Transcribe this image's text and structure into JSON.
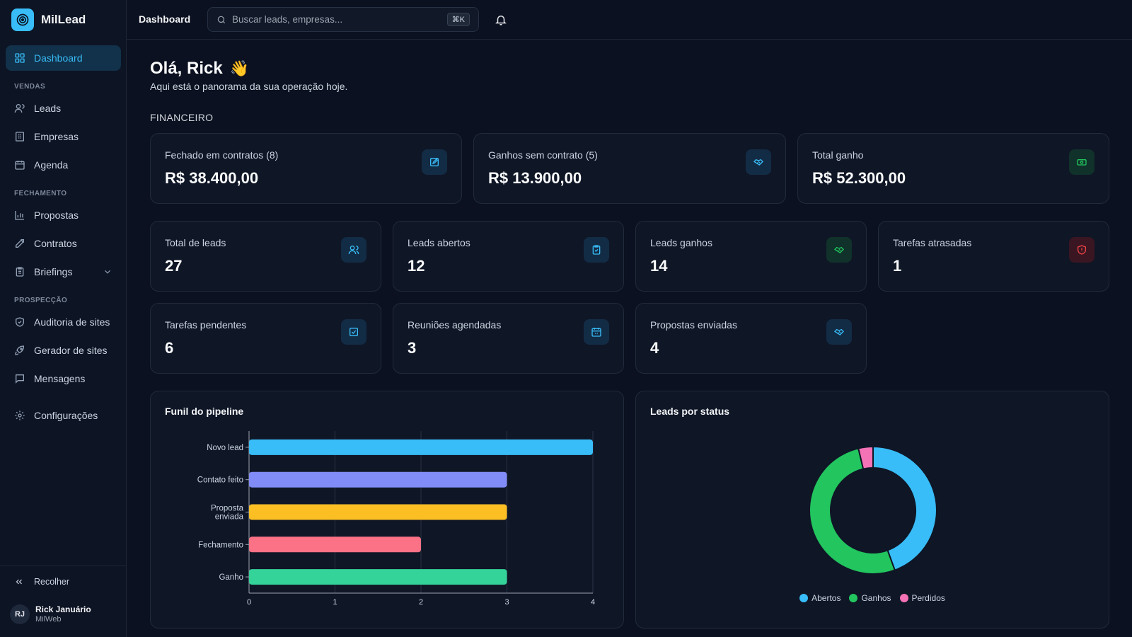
{
  "app": {
    "name": "MilLead"
  },
  "sidebar": {
    "dashboard": "Dashboard",
    "sections": {
      "vendas": "VENDAS",
      "fechamento": "FECHAMENTO",
      "prospeccao": "PROSPECÇÃO"
    },
    "items": {
      "leads": "Leads",
      "empresas": "Empresas",
      "agenda": "Agenda",
      "propostas": "Propostas",
      "contratos": "Contratos",
      "briefings": "Briefings",
      "auditoria": "Auditoria de sites",
      "gerador": "Gerador de sites",
      "mensagens": "Mensagens",
      "configuracoes": "Configurações"
    },
    "collapse": "Recolher",
    "user": {
      "initials": "RJ",
      "name": "Rick Januário",
      "org": "MilWeb"
    }
  },
  "topbar": {
    "title": "Dashboard",
    "search_placeholder": "Buscar leads, empresas...",
    "shortcut": "⌘K"
  },
  "greeting": {
    "title": "Olá, Rick",
    "emoji": "👋",
    "subtitle": "Aqui está o panorama da sua operação hoje."
  },
  "financeiro": {
    "label": "FINANCEIRO",
    "cards": [
      {
        "label": "Fechado em contratos (8)",
        "value": "R$ 38.400,00",
        "icon": "edit-icon"
      },
      {
        "label": "Ganhos sem contrato (5)",
        "value": "R$ 13.900,00",
        "icon": "handshake-icon"
      },
      {
        "label": "Total ganho",
        "value": "R$ 52.300,00",
        "icon": "banknote-icon"
      }
    ]
  },
  "stats": [
    {
      "label": "Total de leads",
      "value": "27",
      "icon": "users-icon",
      "color": "#38bdf8"
    },
    {
      "label": "Leads abertos",
      "value": "12",
      "icon": "clipboard-icon",
      "color": "#38bdf8"
    },
    {
      "label": "Leads ganhos",
      "value": "14",
      "icon": "handshake-icon",
      "color": "#22c55e"
    },
    {
      "label": "Tarefas atrasadas",
      "value": "1",
      "icon": "alert-shield-icon",
      "color": "#ef4444"
    },
    {
      "label": "Tarefas pendentes",
      "value": "6",
      "icon": "check-square-icon",
      "color": "#38bdf8"
    },
    {
      "label": "Reuniões agendadas",
      "value": "3",
      "icon": "calendar-icon",
      "color": "#38bdf8"
    },
    {
      "label": "Propostas enviadas",
      "value": "4",
      "icon": "handshake-icon",
      "color": "#38bdf8"
    }
  ],
  "chart_data": [
    {
      "type": "bar",
      "orientation": "horizontal",
      "title": "Funil do pipeline",
      "categories": [
        "Novo lead",
        "Contato feito",
        "Proposta enviada",
        "Fechamento",
        "Ganho"
      ],
      "values": [
        4,
        3,
        3,
        2,
        3
      ],
      "colors": [
        "#38bdf8",
        "#818cf8",
        "#fbbf24",
        "#fb7185",
        "#34d399"
      ],
      "xlim": [
        0,
        4
      ],
      "xticks": [
        0,
        1,
        2,
        3,
        4
      ],
      "grid": true
    },
    {
      "type": "pie",
      "donut": true,
      "title": "Leads por status",
      "categories": [
        "Abertos",
        "Ganhos",
        "Perdidos"
      ],
      "values": [
        12,
        14,
        1
      ],
      "colors": [
        "#38bdf8",
        "#22c55e",
        "#f472b6"
      ],
      "legend": "bottom"
    }
  ]
}
